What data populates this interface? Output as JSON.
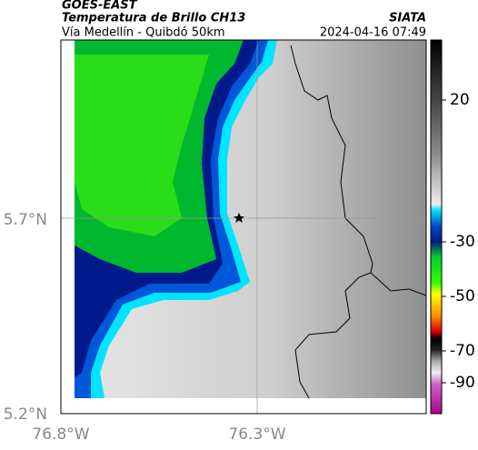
{
  "header": {
    "source": "GOES-EAST",
    "title": "Temperatura de Brillo CH13",
    "subtitle": "Vía Medellín - Quibdó 50km",
    "agency": "SIATA",
    "timestamp": "2024-04-16 07:49"
  },
  "map": {
    "x_labels": [
      "76.8°W",
      "76.3°W"
    ],
    "y_labels": [
      "5.7°N",
      "5.2°N"
    ]
  },
  "colorbar": {
    "ticks": [
      20,
      -30,
      -50,
      -70,
      -90
    ]
  }
}
